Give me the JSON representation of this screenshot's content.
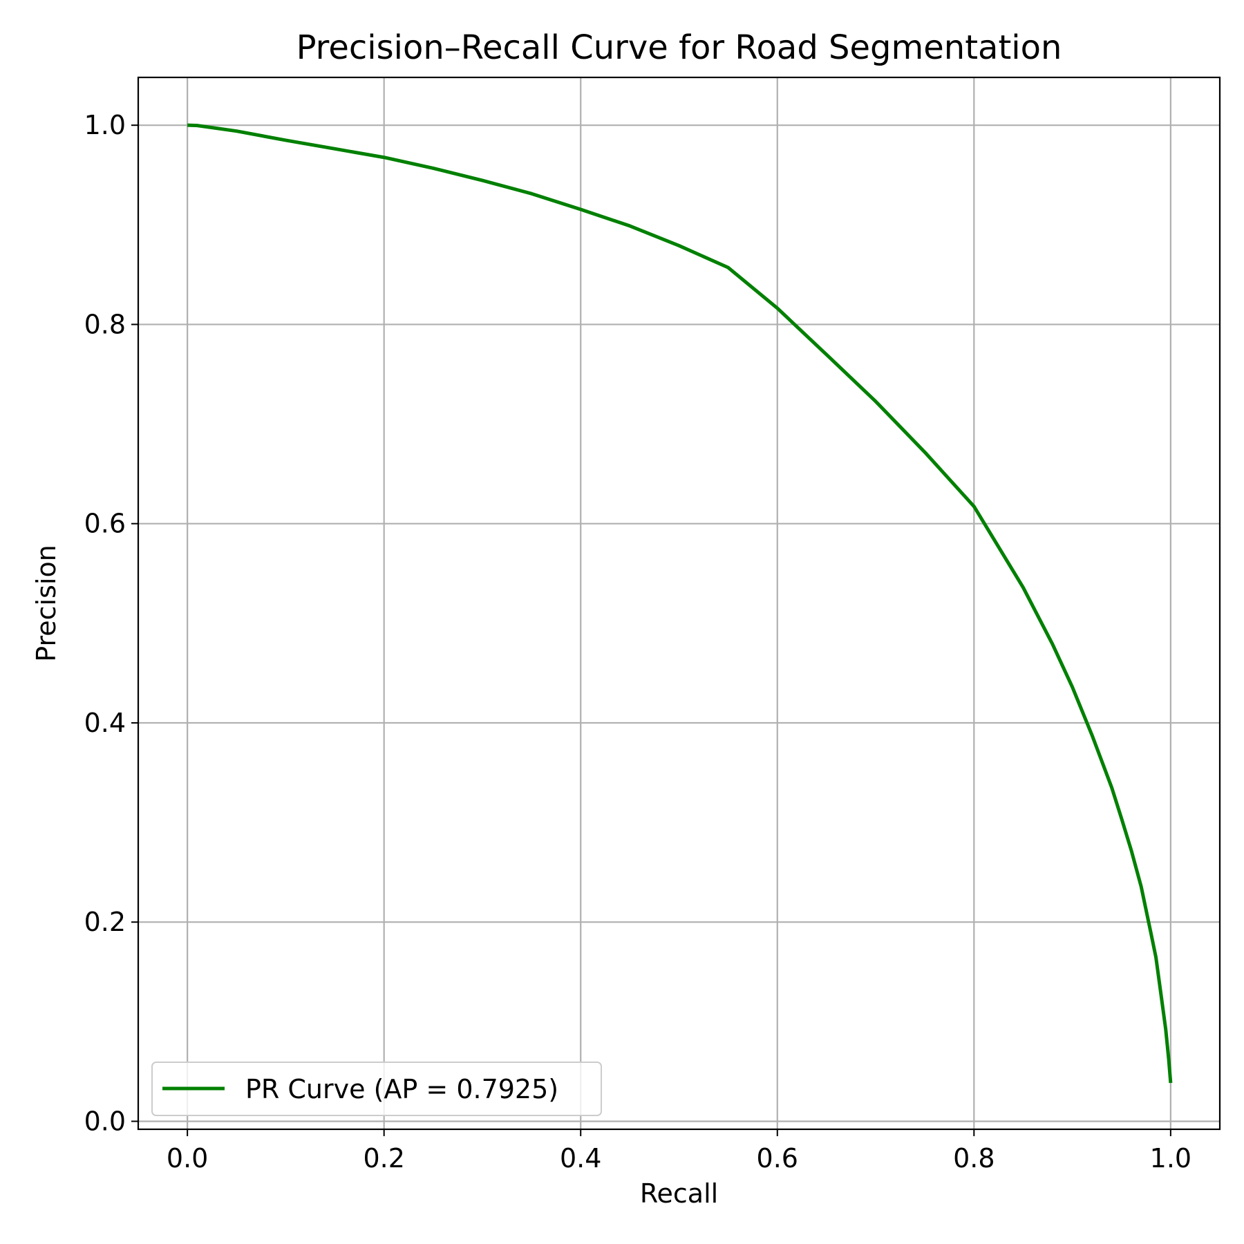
{
  "chart_data": {
    "type": "line",
    "title": "Precision–Recall Curve for Road Segmentation",
    "xlabel": "Recall",
    "ylabel": "Precision",
    "xlim": [
      -0.05,
      1.05
    ],
    "ylim": [
      -0.008,
      1.048
    ],
    "xticks": [
      0.0,
      0.2,
      0.4,
      0.6,
      0.8,
      1.0
    ],
    "xtick_labels": [
      "0.0",
      "0.2",
      "0.4",
      "0.6",
      "0.8",
      "1.0"
    ],
    "yticks": [
      0.0,
      0.2,
      0.4,
      0.6,
      0.8,
      1.0
    ],
    "ytick_labels": [
      "0.0",
      "0.2",
      "0.4",
      "0.6",
      "0.8",
      "1.0"
    ],
    "grid": true,
    "legend_position": "lower-left",
    "series": [
      {
        "name": "PR Curve (AP = 0.7925)",
        "color": "#008000",
        "x": [
          0.0,
          0.01,
          0.05,
          0.1,
          0.15,
          0.2,
          0.25,
          0.3,
          0.35,
          0.4,
          0.45,
          0.5,
          0.55,
          0.6,
          0.65,
          0.7,
          0.75,
          0.8,
          0.85,
          0.88,
          0.9,
          0.92,
          0.94,
          0.95,
          0.96,
          0.97,
          0.98,
          0.985,
          0.99,
          0.995,
          0.998,
          1.0
        ],
        "y": [
          1.0,
          0.9997,
          0.9941,
          0.9849,
          0.9763,
          0.9677,
          0.9568,
          0.9446,
          0.9313,
          0.9155,
          0.8989,
          0.8791,
          0.8571,
          0.8163,
          0.7697,
          0.7227,
          0.6717,
          0.6173,
          0.5359,
          0.4787,
          0.436,
          0.3877,
          0.3353,
          0.3041,
          0.2719,
          0.2357,
          0.1887,
          0.1648,
          0.1287,
          0.0922,
          0.0625,
          0.0385
        ]
      }
    ]
  }
}
